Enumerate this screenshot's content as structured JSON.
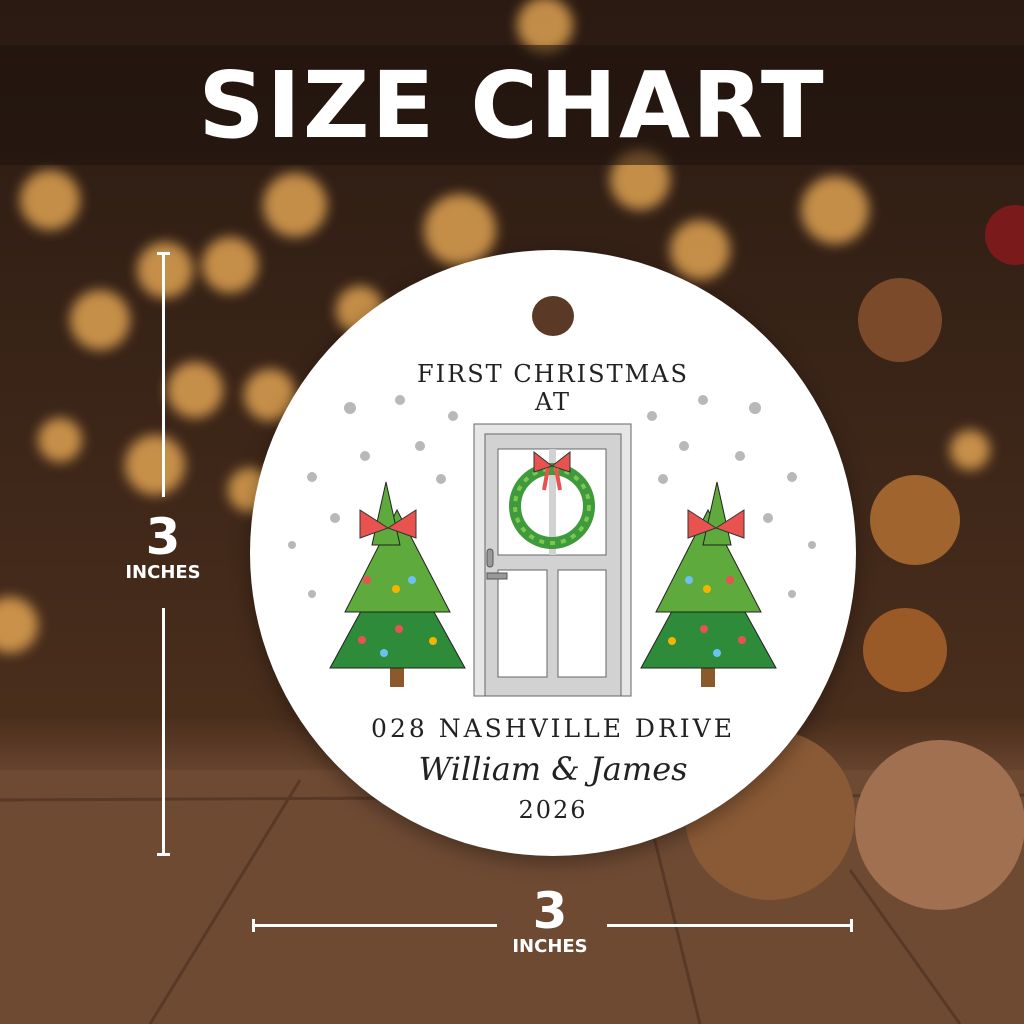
{
  "banner": {
    "title": "SIZE CHART"
  },
  "ornament": {
    "line1": "FIRST CHRISTMAS",
    "line2": "AT",
    "address": "028 NASHVILLE DRIVE",
    "names": "William & James",
    "year": "2026"
  },
  "dimensions": {
    "height": {
      "value": "3",
      "unit": "INCHES"
    },
    "width": {
      "value": "3",
      "unit": "INCHES"
    }
  },
  "colors": {
    "tree_green": "#2e8b3a",
    "bow_red": "#e8534f",
    "door_gray": "#d4d4d4"
  }
}
